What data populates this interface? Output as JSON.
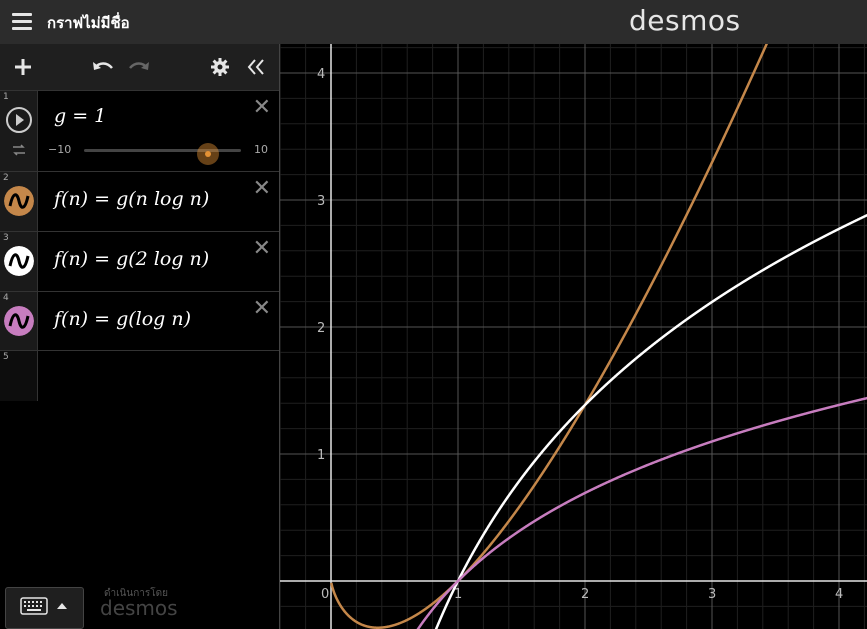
{
  "app": {
    "graph_title": "กราฟไม่มีชื่อ",
    "logo": "desmos",
    "powered_by": "ดำเนินการโดย",
    "powered_logo": "desmos"
  },
  "toolbar": {
    "add_icon": "plus-icon",
    "undo_icon": "undo-icon",
    "redo_icon": "redo-icon",
    "settings_icon": "gear-icon",
    "collapse_icon": "double-chevron-left-icon"
  },
  "expressions": [
    {
      "index": "1",
      "latex": "g = 1",
      "slider": {
        "min": "−10",
        "max": "10",
        "value": 1
      },
      "color": "#e39134"
    },
    {
      "index": "2",
      "latex": "f(n) = g(n log n)",
      "color": "#c4874a"
    },
    {
      "index": "3",
      "latex": "f(n) = g(2 log n)",
      "color": "#ffffff"
    },
    {
      "index": "4",
      "latex": "f(n) = g(log n)",
      "color": "#c77dbf"
    },
    {
      "index": "5",
      "latex": ""
    }
  ],
  "graph": {
    "x_ticks": [
      "0",
      "1",
      "2",
      "3",
      "4"
    ],
    "y_ticks": [
      "1",
      "2",
      "3",
      "4"
    ],
    "x_range": [
      -0.38,
      4.25
    ],
    "y_range": [
      -0.38,
      4.25
    ],
    "grid": true
  },
  "chart_data": {
    "type": "line",
    "series": [
      {
        "expression": "n log n",
        "color": "#c4874a"
      },
      {
        "expression": "2 log n",
        "color": "#ffffff"
      },
      {
        "expression": "log n",
        "color": "#c77dbf"
      }
    ],
    "xlim": [
      -0.38,
      4.25
    ],
    "ylim": [
      -0.38,
      4.25
    ],
    "grid": true
  }
}
